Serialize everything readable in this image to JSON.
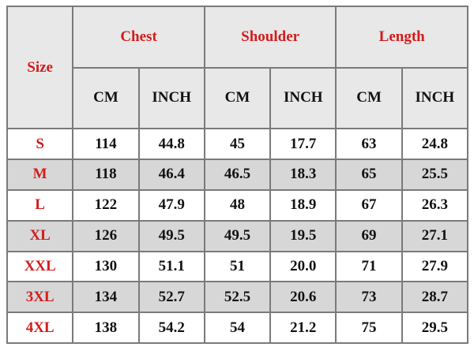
{
  "header": {
    "size": "Size",
    "groups": [
      "Chest",
      "Shoulder",
      "Length"
    ],
    "units": [
      "CM",
      "INCH",
      "CM",
      "INCH",
      "CM",
      "INCH"
    ]
  },
  "colors": {
    "header_text": "#d21c1c",
    "header_bg": "#e8e8e8",
    "alt_row_bg": "#d7d7d7"
  },
  "rows": [
    {
      "size": "S",
      "values": [
        "114",
        "44.8",
        "45",
        "17.7",
        "63",
        "24.8"
      ]
    },
    {
      "size": "M",
      "values": [
        "118",
        "46.4",
        "46.5",
        "18.3",
        "65",
        "25.5"
      ]
    },
    {
      "size": "L",
      "values": [
        "122",
        "47.9",
        "48",
        "18.9",
        "67",
        "26.3"
      ]
    },
    {
      "size": "XL",
      "values": [
        "126",
        "49.5",
        "49.5",
        "19.5",
        "69",
        "27.1"
      ]
    },
    {
      "size": "XXL",
      "values": [
        "130",
        "51.1",
        "51",
        "20.0",
        "71",
        "27.9"
      ]
    },
    {
      "size": "3XL",
      "values": [
        "134",
        "52.7",
        "52.5",
        "20.6",
        "73",
        "28.7"
      ]
    },
    {
      "size": "4XL",
      "values": [
        "138",
        "54.2",
        "54",
        "21.2",
        "75",
        "29.5"
      ]
    }
  ]
}
